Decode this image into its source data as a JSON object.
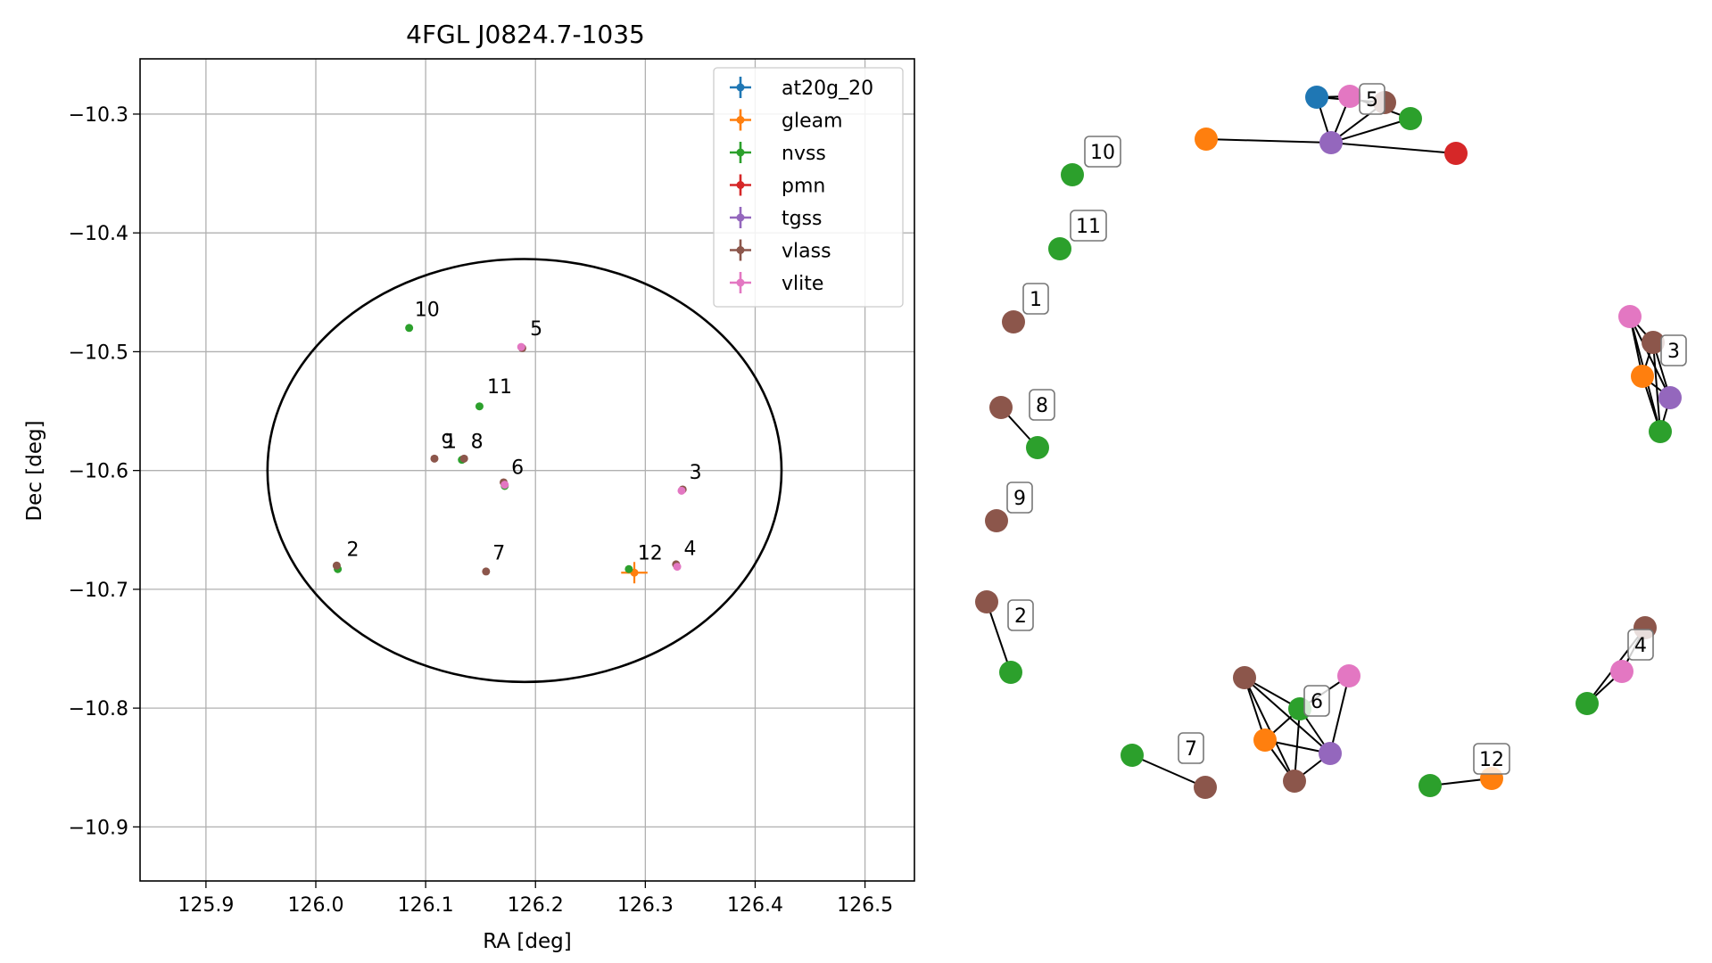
{
  "chart_data": [
    {
      "type": "scatter",
      "title": "4FGL J0824.7-1035",
      "xlabel": "RA [deg]",
      "ylabel": "Dec [deg]",
      "xlim": [
        125.84,
        126.545
      ],
      "ylim": [
        -10.9455,
        -10.2535
      ],
      "xticks": [
        125.9,
        126.0,
        126.1,
        126.2,
        126.3,
        126.4,
        126.5
      ],
      "xtick_labels": [
        "125.9",
        "126.0",
        "126.1",
        "126.2",
        "126.3",
        "126.4",
        "126.5"
      ],
      "yticks": [
        -10.3,
        -10.4,
        -10.5,
        -10.6,
        -10.7,
        -10.8,
        -10.9
      ],
      "ytick_labels": [
        "−10.3",
        "−10.4",
        "−10.5",
        "−10.6",
        "−10.7",
        "−10.8",
        "−10.9"
      ],
      "grid": true,
      "legend_position": "top-right",
      "ellipse": {
        "center": [
          126.19,
          -10.6
        ],
        "semi_axis_x": 0.234,
        "semi_axis_y": 0.178,
        "color": "#000000"
      },
      "series": [
        {
          "name": "at20g_20",
          "color": "#1f77b4",
          "points": []
        },
        {
          "name": "gleam",
          "color": "#ff7f0e",
          "points": [
            {
              "x": 126.29,
              "y": -10.686,
              "xerr": 0.012,
              "yerr": 0.009
            }
          ]
        },
        {
          "name": "nvss",
          "color": "#2ca02c",
          "points": [
            {
              "x": 126.085,
              "y": -10.48
            },
            {
              "x": 126.149,
              "y": -10.546
            },
            {
              "x": 126.02,
              "y": -10.683
            },
            {
              "x": 126.285,
              "y": -10.683
            },
            {
              "x": 126.133,
              "y": -10.591
            },
            {
              "x": 126.172,
              "y": -10.613
            }
          ]
        },
        {
          "name": "pmn",
          "color": "#d62728",
          "points": []
        },
        {
          "name": "tgss",
          "color": "#9467bd",
          "points": []
        },
        {
          "name": "vlass",
          "color": "#8c564b",
          "points": [
            {
              "x": 126.108,
              "y": -10.59
            },
            {
              "x": 126.135,
              "y": -10.59
            },
            {
              "x": 126.019,
              "y": -10.68
            },
            {
              "x": 126.155,
              "y": -10.685
            },
            {
              "x": 126.188,
              "y": -10.497
            },
            {
              "x": 126.334,
              "y": -10.616
            },
            {
              "x": 126.328,
              "y": -10.679
            },
            {
              "x": 126.171,
              "y": -10.61
            }
          ]
        },
        {
          "name": "vlite",
          "color": "#e377c2",
          "points": [
            {
              "x": 126.187,
              "y": -10.496
            },
            {
              "x": 126.333,
              "y": -10.617
            },
            {
              "x": 126.329,
              "y": -10.681
            },
            {
              "x": 126.172,
              "y": -10.612
            }
          ]
        }
      ],
      "annotations": [
        {
          "text": "10",
          "x": 126.09,
          "y": -10.47
        },
        {
          "text": "5",
          "x": 126.195,
          "y": -10.486
        },
        {
          "text": "11",
          "x": 126.156,
          "y": -10.535
        },
        {
          "text": "9",
          "x": 126.114,
          "y": -10.581
        },
        {
          "text": "1",
          "x": 126.117,
          "y": -10.581
        },
        {
          "text": "8",
          "x": 126.141,
          "y": -10.581
        },
        {
          "text": "6",
          "x": 126.178,
          "y": -10.603
        },
        {
          "text": "3",
          "x": 126.34,
          "y": -10.607
        },
        {
          "text": "2",
          "x": 126.028,
          "y": -10.672
        },
        {
          "text": "7",
          "x": 126.161,
          "y": -10.675
        },
        {
          "text": "12",
          "x": 126.293,
          "y": -10.675
        },
        {
          "text": "4",
          "x": 126.335,
          "y": -10.671
        }
      ]
    },
    {
      "type": "network",
      "nodes": [
        {
          "id": "n5a",
          "color": "#1f77b4"
        },
        {
          "id": "n5b",
          "color": "#e377c2"
        },
        {
          "id": "n5c",
          "color": "#8c564b"
        },
        {
          "id": "n5d",
          "color": "#2ca02c"
        },
        {
          "id": "n5e",
          "color": "#9467bd"
        },
        {
          "id": "n5f",
          "color": "#ff7f0e"
        },
        {
          "id": "n5g",
          "color": "#d62728"
        },
        {
          "id": "n10",
          "color": "#2ca02c"
        },
        {
          "id": "n11",
          "color": "#2ca02c"
        },
        {
          "id": "n1",
          "color": "#8c564b"
        },
        {
          "id": "n8a",
          "color": "#8c564b"
        },
        {
          "id": "n8b",
          "color": "#2ca02c"
        },
        {
          "id": "n9",
          "color": "#8c564b"
        },
        {
          "id": "n2a",
          "color": "#8c564b"
        },
        {
          "id": "n2b",
          "color": "#2ca02c"
        },
        {
          "id": "n3a",
          "color": "#e377c2"
        },
        {
          "id": "n3b",
          "color": "#8c564b"
        },
        {
          "id": "n3c",
          "color": "#ff7f0e"
        },
        {
          "id": "n3d",
          "color": "#9467bd"
        },
        {
          "id": "n3e",
          "color": "#2ca02c"
        },
        {
          "id": "n4a",
          "color": "#8c564b"
        },
        {
          "id": "n4b",
          "color": "#e377c2"
        },
        {
          "id": "n4c",
          "color": "#2ca02c"
        },
        {
          "id": "n6a",
          "color": "#8c564b"
        },
        {
          "id": "n6b",
          "color": "#e377c2"
        },
        {
          "id": "n6c",
          "color": "#2ca02c"
        },
        {
          "id": "n6d",
          "color": "#ff7f0e"
        },
        {
          "id": "n6e",
          "color": "#9467bd"
        },
        {
          "id": "n6f",
          "color": "#8c564b"
        },
        {
          "id": "n7a",
          "color": "#2ca02c"
        },
        {
          "id": "n7b",
          "color": "#8c564b"
        },
        {
          "id": "n12a",
          "color": "#2ca02c"
        },
        {
          "id": "n12b",
          "color": "#ff7f0e"
        }
      ],
      "edges": [
        [
          "n5a",
          "n5b"
        ],
        [
          "n5a",
          "n5c"
        ],
        [
          "n5a",
          "n5e"
        ],
        [
          "n5b",
          "n5e"
        ],
        [
          "n5c",
          "n5e"
        ],
        [
          "n5d",
          "n5e"
        ],
        [
          "n5b",
          "n5d"
        ],
        [
          "n5f",
          "n5e"
        ],
        [
          "n5g",
          "n5e"
        ],
        [
          "n8a",
          "n8b"
        ],
        [
          "n2a",
          "n2b"
        ],
        [
          "n3a",
          "n3b"
        ],
        [
          "n3a",
          "n3c"
        ],
        [
          "n3a",
          "n3d"
        ],
        [
          "n3a",
          "n3e"
        ],
        [
          "n3b",
          "n3c"
        ],
        [
          "n3b",
          "n3d"
        ],
        [
          "n3b",
          "n3e"
        ],
        [
          "n3c",
          "n3d"
        ],
        [
          "n3c",
          "n3e"
        ],
        [
          "n3d",
          "n3e"
        ],
        [
          "n4a",
          "n4b"
        ],
        [
          "n4b",
          "n4c"
        ],
        [
          "n4a",
          "n4c"
        ],
        [
          "n6a",
          "n6c"
        ],
        [
          "n6a",
          "n6d"
        ],
        [
          "n6a",
          "n6e"
        ],
        [
          "n6a",
          "n6f"
        ],
        [
          "n6b",
          "n6c"
        ],
        [
          "n6b",
          "n6e"
        ],
        [
          "n6c",
          "n6d"
        ],
        [
          "n6c",
          "n6e"
        ],
        [
          "n6c",
          "n6f"
        ],
        [
          "n6d",
          "n6e"
        ],
        [
          "n6d",
          "n6f"
        ],
        [
          "n6e",
          "n6f"
        ],
        [
          "n7a",
          "n7b"
        ],
        [
          "n12a",
          "n12b"
        ]
      ],
      "labels": [
        {
          "text": "5",
          "node": "n5b"
        },
        {
          "text": "10",
          "node": "n10"
        },
        {
          "text": "11",
          "node": "n11"
        },
        {
          "text": "1",
          "node": "n1"
        },
        {
          "text": "8",
          "node": "n8a"
        },
        {
          "text": "9",
          "node": "n9"
        },
        {
          "text": "2",
          "node": "n2a"
        },
        {
          "text": "3",
          "node": "n3b"
        },
        {
          "text": "4",
          "node": "n4a"
        },
        {
          "text": "6",
          "node": "n6c"
        },
        {
          "text": "7",
          "node": "n7b"
        },
        {
          "text": "12",
          "node": "n12b"
        }
      ]
    }
  ]
}
